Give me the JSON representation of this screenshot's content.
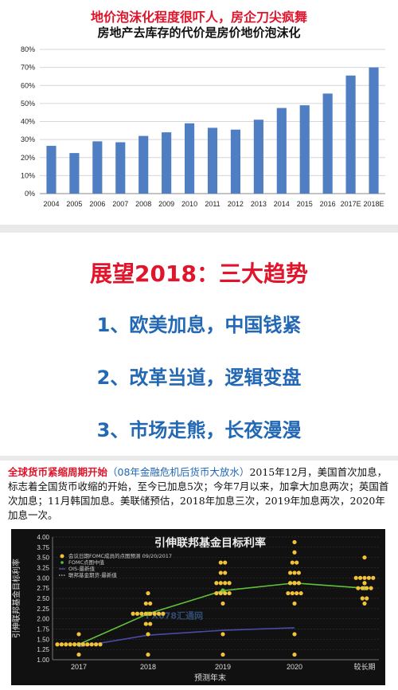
{
  "panel1": {
    "title": "地价泡沫化程度很吓人，房企刀尖疯舞",
    "subtitle": "房地产去库存的代价是房价地价泡沫化"
  },
  "panel2": {
    "heading": "展望2018：三大趋势",
    "items": [
      "1、欧美加息，中国钱紧",
      "2、改革当道，逻辑变盘",
      "3、市场走熊，长夜漫漫"
    ]
  },
  "panel3": {
    "title": "全球货币紧缩周期开始",
    "subtitle": "（08年金融危机后货币大放水）",
    "body": "2015年12月，美国首次加息，标志着全国货币收缩的开始，至今已加息5次；今年7月以来，加拿大加息两次；英国首次加息；11月韩国加息。美联储预估，2018年加息三次，2019年加息两次，2020年加息一次。"
  },
  "colors": {
    "accent_red": "#e0142a",
    "accent_blue": "#2268b4",
    "bar": "#4f7fc2",
    "dot": "#f2c33a",
    "median": "#5fc23a",
    "ois": "#4a4aa8"
  },
  "chart_data": [
    {
      "type": "bar",
      "categories": [
        "2004",
        "2005",
        "2006",
        "2007",
        "2008",
        "2009",
        "2010",
        "2011",
        "2012",
        "2013",
        "2014",
        "2015",
        "2016",
        "2017E",
        "2018E"
      ],
      "values": [
        26.5,
        22.5,
        29,
        28.5,
        32,
        34,
        39,
        36.5,
        35.5,
        41,
        47.5,
        49,
        55.5,
        65.5,
        70
      ],
      "yticks": [
        "0%",
        "10%",
        "20%",
        "30%",
        "40%",
        "50%",
        "60%",
        "70%",
        "80%"
      ],
      "ylim": [
        0,
        80
      ],
      "grid": true
    },
    {
      "type": "scatter",
      "title": "引伸联邦基金目标利率",
      "ylabel": "引伸联邦基金目标利率",
      "xlabel": "预测年末",
      "categories": [
        "2017",
        "2018",
        "2019",
        "2020",
        "较长期"
      ],
      "yticks": [
        "1.00",
        "1.25",
        "1.50",
        "1.75",
        "2.00",
        "2.25",
        "2.50",
        "2.75",
        "3.00",
        "3.25",
        "3.50",
        "3.75",
        "4.00"
      ],
      "ylim": [
        1.0,
        4.0
      ],
      "legend": [
        "会议日期FOMC成员的点图预测 09/20/2017",
        "FOMC点图中值",
        "OIS-最新值",
        "联邦基金期货-最新值"
      ],
      "series": [
        {
          "name": "会议日期FOMC成员的点图预测 09/20/2017",
          "points": [
            {
              "x": 0,
              "y": 1.125,
              "n": 1
            },
            {
              "x": 0,
              "y": 1.375,
              "n": 11
            },
            {
              "x": 0,
              "y": 1.625,
              "n": 1
            },
            {
              "x": 1,
              "y": 1.125,
              "n": 1
            },
            {
              "x": 1,
              "y": 1.625,
              "n": 1
            },
            {
              "x": 1,
              "y": 1.875,
              "n": 2
            },
            {
              "x": 1,
              "y": 2.125,
              "n": 8
            },
            {
              "x": 1,
              "y": 2.375,
              "n": 2
            },
            {
              "x": 1,
              "y": 2.625,
              "n": 1
            },
            {
              "x": 2,
              "y": 1.125,
              "n": 1
            },
            {
              "x": 2,
              "y": 1.625,
              "n": 1
            },
            {
              "x": 2,
              "y": 2.375,
              "n": 1
            },
            {
              "x": 2,
              "y": 2.625,
              "n": 4
            },
            {
              "x": 2,
              "y": 2.875,
              "n": 4
            },
            {
              "x": 2,
              "y": 3.125,
              "n": 2
            },
            {
              "x": 2,
              "y": 3.375,
              "n": 2
            },
            {
              "x": 3,
              "y": 1.125,
              "n": 1
            },
            {
              "x": 3,
              "y": 1.625,
              "n": 1
            },
            {
              "x": 3,
              "y": 2.375,
              "n": 1
            },
            {
              "x": 3,
              "y": 2.625,
              "n": 4
            },
            {
              "x": 3,
              "y": 2.875,
              "n": 3
            },
            {
              "x": 3,
              "y": 3.125,
              "n": 3
            },
            {
              "x": 3,
              "y": 3.375,
              "n": 2
            },
            {
              "x": 3,
              "y": 3.625,
              "n": 1
            },
            {
              "x": 3,
              "y": 3.875,
              "n": 1
            },
            {
              "x": 4,
              "y": 2.375,
              "n": 1
            },
            {
              "x": 4,
              "y": 2.5,
              "n": 2
            },
            {
              "x": 4,
              "y": 2.75,
              "n": 4
            },
            {
              "x": 4,
              "y": 2.875,
              "n": 1
            },
            {
              "x": 4,
              "y": 3.0,
              "n": 5
            },
            {
              "x": 4,
              "y": 3.5,
              "n": 1
            }
          ]
        },
        {
          "name": "FOMC点图中值",
          "values": [
            1.375,
            2.125,
            2.688,
            2.875,
            2.75
          ]
        },
        {
          "name": "OIS-最新值",
          "values": [
            1.32,
            1.6,
            1.72,
            1.78
          ]
        }
      ],
      "annotation": "FX678汇通网"
    }
  ]
}
